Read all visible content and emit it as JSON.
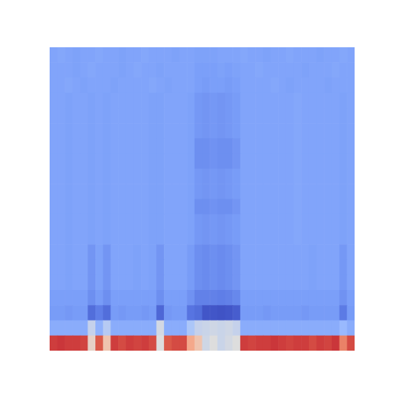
{
  "chart_data": {
    "type": "heatmap",
    "color": "coolwarm",
    "color_range": [
      0,
      1
    ],
    "tick_labels": false,
    "cells": [
      [
        0.27,
        0.28,
        0.27,
        0.26,
        0.27,
        0.27,
        0.28,
        0.27,
        0.27,
        0.26,
        0.27,
        0.27,
        0.28,
        0.27,
        0.27,
        0.27,
        0.26,
        0.27,
        0.27,
        0.26,
        0.26,
        0.26,
        0.27,
        0.27,
        0.27,
        0.28,
        0.27,
        0.27,
        0.26,
        0.27,
        0.27,
        0.28,
        0.27,
        0.27,
        0.27,
        0.26,
        0.27,
        0.27,
        0.28,
        0.27
      ],
      [
        0.27,
        0.27,
        0.27,
        0.26,
        0.27,
        0.28,
        0.27,
        0.27,
        0.27,
        0.26,
        0.27,
        0.28,
        0.27,
        0.27,
        0.26,
        0.27,
        0.27,
        0.27,
        0.27,
        0.25,
        0.25,
        0.25,
        0.26,
        0.25,
        0.26,
        0.27,
        0.27,
        0.28,
        0.27,
        0.27,
        0.27,
        0.27,
        0.27,
        0.26,
        0.27,
        0.27,
        0.27,
        0.28,
        0.27,
        0.27
      ],
      [
        0.27,
        0.27,
        0.28,
        0.27,
        0.26,
        0.27,
        0.27,
        0.27,
        0.26,
        0.27,
        0.27,
        0.27,
        0.27,
        0.28,
        0.27,
        0.26,
        0.27,
        0.27,
        0.27,
        0.25,
        0.24,
        0.25,
        0.25,
        0.24,
        0.25,
        0.27,
        0.27,
        0.27,
        0.27,
        0.28,
        0.27,
        0.26,
        0.27,
        0.27,
        0.27,
        0.27,
        0.26,
        0.27,
        0.27,
        0.27
      ],
      [
        0.27,
        0.27,
        0.26,
        0.27,
        0.27,
        0.26,
        0.27,
        0.26,
        0.27,
        0.27,
        0.27,
        0.27,
        0.27,
        0.26,
        0.26,
        0.27,
        0.27,
        0.27,
        0.26,
        0.23,
        0.22,
        0.23,
        0.22,
        0.23,
        0.24,
        0.27,
        0.27,
        0.27,
        0.27,
        0.27,
        0.27,
        0.27,
        0.28,
        0.27,
        0.27,
        0.27,
        0.27,
        0.27,
        0.26,
        0.27
      ],
      [
        0.27,
        0.27,
        0.26,
        0.27,
        0.27,
        0.26,
        0.27,
        0.26,
        0.27,
        0.27,
        0.27,
        0.27,
        0.27,
        0.26,
        0.26,
        0.27,
        0.27,
        0.27,
        0.26,
        0.23,
        0.22,
        0.23,
        0.22,
        0.23,
        0.24,
        0.27,
        0.27,
        0.27,
        0.27,
        0.27,
        0.27,
        0.27,
        0.28,
        0.27,
        0.27,
        0.27,
        0.27,
        0.27,
        0.26,
        0.27
      ],
      [
        0.27,
        0.27,
        0.26,
        0.27,
        0.27,
        0.26,
        0.27,
        0.26,
        0.27,
        0.27,
        0.27,
        0.27,
        0.27,
        0.26,
        0.26,
        0.27,
        0.27,
        0.27,
        0.26,
        0.23,
        0.22,
        0.23,
        0.22,
        0.23,
        0.24,
        0.27,
        0.27,
        0.27,
        0.27,
        0.27,
        0.27,
        0.27,
        0.28,
        0.27,
        0.27,
        0.27,
        0.27,
        0.27,
        0.26,
        0.27
      ],
      [
        0.27,
        0.27,
        0.26,
        0.27,
        0.27,
        0.26,
        0.27,
        0.26,
        0.27,
        0.27,
        0.27,
        0.27,
        0.27,
        0.26,
        0.26,
        0.27,
        0.27,
        0.27,
        0.26,
        0.2,
        0.2,
        0.21,
        0.2,
        0.2,
        0.22,
        0.27,
        0.27,
        0.27,
        0.27,
        0.27,
        0.27,
        0.27,
        0.28,
        0.27,
        0.27,
        0.27,
        0.27,
        0.27,
        0.26,
        0.27
      ],
      [
        0.27,
        0.27,
        0.26,
        0.27,
        0.27,
        0.26,
        0.27,
        0.26,
        0.27,
        0.27,
        0.27,
        0.27,
        0.27,
        0.26,
        0.26,
        0.27,
        0.27,
        0.27,
        0.26,
        0.2,
        0.2,
        0.21,
        0.2,
        0.2,
        0.22,
        0.27,
        0.27,
        0.27,
        0.27,
        0.27,
        0.27,
        0.27,
        0.28,
        0.27,
        0.27,
        0.27,
        0.27,
        0.27,
        0.26,
        0.27
      ],
      [
        0.27,
        0.27,
        0.26,
        0.27,
        0.27,
        0.26,
        0.27,
        0.26,
        0.27,
        0.27,
        0.27,
        0.27,
        0.27,
        0.26,
        0.26,
        0.27,
        0.27,
        0.27,
        0.26,
        0.23,
        0.22,
        0.23,
        0.22,
        0.23,
        0.24,
        0.27,
        0.27,
        0.27,
        0.27,
        0.27,
        0.27,
        0.27,
        0.28,
        0.27,
        0.27,
        0.27,
        0.27,
        0.27,
        0.26,
        0.27
      ],
      [
        0.27,
        0.27,
        0.26,
        0.27,
        0.27,
        0.26,
        0.27,
        0.26,
        0.27,
        0.27,
        0.27,
        0.27,
        0.27,
        0.26,
        0.26,
        0.27,
        0.27,
        0.27,
        0.26,
        0.23,
        0.22,
        0.23,
        0.22,
        0.23,
        0.24,
        0.27,
        0.27,
        0.27,
        0.27,
        0.27,
        0.27,
        0.27,
        0.28,
        0.27,
        0.27,
        0.27,
        0.27,
        0.27,
        0.26,
        0.27
      ],
      [
        0.27,
        0.27,
        0.26,
        0.27,
        0.27,
        0.26,
        0.27,
        0.26,
        0.27,
        0.27,
        0.27,
        0.27,
        0.27,
        0.26,
        0.26,
        0.27,
        0.27,
        0.27,
        0.26,
        0.2,
        0.2,
        0.21,
        0.2,
        0.2,
        0.22,
        0.27,
        0.27,
        0.27,
        0.27,
        0.27,
        0.27,
        0.27,
        0.28,
        0.27,
        0.27,
        0.27,
        0.27,
        0.27,
        0.26,
        0.27
      ],
      [
        0.27,
        0.27,
        0.26,
        0.27,
        0.27,
        0.26,
        0.27,
        0.26,
        0.27,
        0.27,
        0.27,
        0.27,
        0.27,
        0.26,
        0.26,
        0.27,
        0.27,
        0.27,
        0.26,
        0.23,
        0.22,
        0.23,
        0.22,
        0.23,
        0.24,
        0.27,
        0.27,
        0.27,
        0.27,
        0.27,
        0.27,
        0.27,
        0.28,
        0.27,
        0.27,
        0.27,
        0.27,
        0.27,
        0.26,
        0.27
      ],
      [
        0.27,
        0.27,
        0.26,
        0.27,
        0.27,
        0.26,
        0.27,
        0.26,
        0.27,
        0.27,
        0.27,
        0.27,
        0.27,
        0.26,
        0.26,
        0.27,
        0.27,
        0.27,
        0.26,
        0.23,
        0.22,
        0.23,
        0.22,
        0.23,
        0.24,
        0.27,
        0.27,
        0.27,
        0.27,
        0.27,
        0.27,
        0.27,
        0.28,
        0.27,
        0.27,
        0.27,
        0.27,
        0.27,
        0.26,
        0.27
      ],
      [
        0.27,
        0.27,
        0.26,
        0.27,
        0.27,
        0.22,
        0.26,
        0.22,
        0.27,
        0.27,
        0.27,
        0.26,
        0.27,
        0.26,
        0.22,
        0.27,
        0.27,
        0.27,
        0.24,
        0.2,
        0.19,
        0.2,
        0.19,
        0.2,
        0.22,
        0.27,
        0.27,
        0.27,
        0.27,
        0.27,
        0.27,
        0.27,
        0.27,
        0.27,
        0.26,
        0.27,
        0.27,
        0.27,
        0.23,
        0.27
      ],
      [
        0.27,
        0.27,
        0.26,
        0.27,
        0.27,
        0.22,
        0.26,
        0.22,
        0.27,
        0.27,
        0.27,
        0.26,
        0.27,
        0.26,
        0.22,
        0.27,
        0.27,
        0.27,
        0.24,
        0.2,
        0.19,
        0.2,
        0.19,
        0.2,
        0.22,
        0.27,
        0.27,
        0.27,
        0.27,
        0.27,
        0.27,
        0.27,
        0.27,
        0.27,
        0.26,
        0.27,
        0.27,
        0.27,
        0.23,
        0.27
      ],
      [
        0.27,
        0.27,
        0.26,
        0.27,
        0.27,
        0.22,
        0.26,
        0.22,
        0.27,
        0.27,
        0.27,
        0.26,
        0.27,
        0.26,
        0.22,
        0.27,
        0.27,
        0.27,
        0.24,
        0.2,
        0.19,
        0.2,
        0.19,
        0.2,
        0.22,
        0.27,
        0.27,
        0.27,
        0.27,
        0.27,
        0.27,
        0.27,
        0.27,
        0.27,
        0.26,
        0.27,
        0.27,
        0.27,
        0.23,
        0.27
      ],
      [
        0.25,
        0.25,
        0.25,
        0.25,
        0.25,
        0.2,
        0.24,
        0.2,
        0.25,
        0.25,
        0.25,
        0.25,
        0.25,
        0.25,
        0.2,
        0.25,
        0.25,
        0.25,
        0.21,
        0.16,
        0.16,
        0.16,
        0.15,
        0.16,
        0.18,
        0.25,
        0.25,
        0.25,
        0.25,
        0.25,
        0.25,
        0.25,
        0.25,
        0.25,
        0.25,
        0.25,
        0.25,
        0.25,
        0.21,
        0.25
      ],
      [
        0.24,
        0.24,
        0.23,
        0.24,
        0.24,
        0.1,
        0.15,
        0.1,
        0.24,
        0.23,
        0.24,
        0.24,
        0.23,
        0.24,
        0.08,
        0.23,
        0.24,
        0.24,
        0.12,
        0.1,
        0.03,
        0.03,
        0.02,
        0.03,
        0.05,
        0.24,
        0.24,
        0.24,
        0.23,
        0.24,
        0.24,
        0.24,
        0.24,
        0.23,
        0.24,
        0.24,
        0.24,
        0.24,
        0.14,
        0.24
      ],
      [
        0.3,
        0.3,
        0.3,
        0.3,
        0.3,
        0.45,
        0.32,
        0.42,
        0.3,
        0.3,
        0.3,
        0.3,
        0.3,
        0.3,
        0.48,
        0.3,
        0.3,
        0.3,
        0.4,
        0.45,
        0.46,
        0.47,
        0.46,
        0.47,
        0.45,
        0.3,
        0.3,
        0.3,
        0.3,
        0.3,
        0.3,
        0.3,
        0.3,
        0.3,
        0.3,
        0.3,
        0.3,
        0.3,
        0.35,
        0.3
      ],
      [
        0.92,
        0.93,
        0.92,
        0.92,
        0.91,
        0.55,
        0.88,
        0.6,
        0.92,
        0.9,
        0.92,
        0.91,
        0.92,
        0.9,
        0.5,
        0.88,
        0.9,
        0.9,
        0.7,
        0.6,
        0.47,
        0.5,
        0.46,
        0.48,
        0.5,
        0.92,
        0.91,
        0.92,
        0.92,
        0.93,
        0.92,
        0.91,
        0.92,
        0.92,
        0.9,
        0.92,
        0.91,
        0.93,
        0.8,
        0.9
      ]
    ]
  }
}
